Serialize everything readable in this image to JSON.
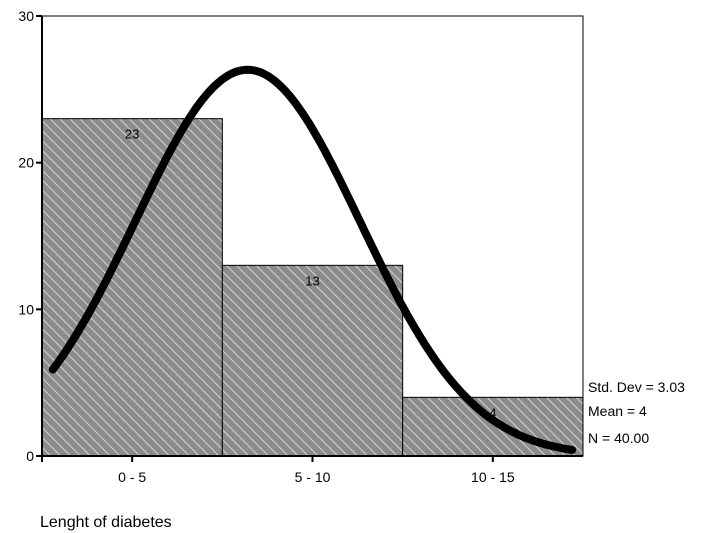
{
  "chart_data": {
    "type": "bar",
    "title": "",
    "xlabel": "Lenght of diabetes",
    "ylabel": "",
    "categories": [
      "0 - 5",
      "5 - 10",
      "10 - 15"
    ],
    "values": [
      23,
      13,
      4
    ],
    "data_labels": [
      "23",
      "13",
      "4"
    ],
    "ylim": [
      0,
      30
    ],
    "yticks": [
      0,
      10,
      20,
      30
    ],
    "grid": false,
    "bar_fill": "#8c8c8c",
    "bar_hatch_color": "#e6e6e6",
    "curve_color": "#000000",
    "normal_curve": {
      "label": "normal curve",
      "mean": 4,
      "std_dev": 3.03,
      "n": 40
    },
    "stats": [
      "Std. Dev = 3.03",
      "Mean = 4",
      "N = 40.00"
    ]
  }
}
